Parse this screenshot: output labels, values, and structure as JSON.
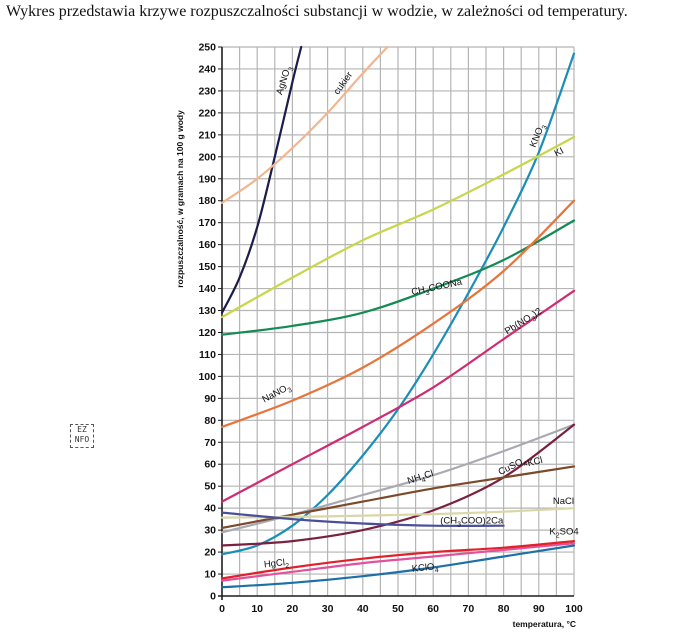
{
  "heading": "Wykres przedstawia krzywe rozpuszczalności substancji w wodzie, w zależności od temperatury.",
  "watermark_text": "EZNFO",
  "chart_data": {
    "type": "line",
    "xlabel": "temperatura, °C",
    "ylabel": "rozpuszczalność, w gramach na 100 g wody",
    "xlim": [
      0,
      100
    ],
    "ylim": [
      0,
      250
    ],
    "xticks": [
      0,
      10,
      20,
      30,
      40,
      50,
      60,
      70,
      80,
      90,
      100
    ],
    "yticks": [
      0,
      10,
      20,
      30,
      40,
      50,
      60,
      70,
      80,
      90,
      100,
      110,
      120,
      130,
      140,
      150,
      160,
      170,
      180,
      190,
      200,
      210,
      220,
      230,
      240,
      250
    ],
    "grid": true,
    "series": [
      {
        "name": "AgNO3",
        "label_main": "AgNO",
        "label_sub": "3",
        "color": "#1c1c4a",
        "x": [
          0,
          5,
          10,
          15,
          20,
          22.5
        ],
        "y": [
          129,
          145,
          168,
          200,
          234,
          250
        ]
      },
      {
        "name": "cukier",
        "label_main": "cukier",
        "label_sub": "",
        "color": "#f2b58e",
        "x": [
          0,
          10,
          20,
          30,
          40,
          47
        ],
        "y": [
          179,
          190,
          204,
          220,
          238,
          250
        ]
      },
      {
        "name": "KNO3",
        "label_main": "KNO",
        "label_sub": "3",
        "color": "#1a8db8",
        "x": [
          0,
          10,
          20,
          30,
          40,
          50,
          60,
          70,
          80,
          90,
          100
        ],
        "y": [
          19,
          23,
          32,
          46,
          64,
          85,
          110,
          138,
          168,
          202,
          247
        ]
      },
      {
        "name": "KI",
        "label_main": "KI",
        "label_sub": "",
        "color": "#c8d64a",
        "x": [
          0,
          20,
          40,
          60,
          80,
          100
        ],
        "y": [
          127,
          145,
          162,
          176,
          192,
          209
        ]
      },
      {
        "name": "CH3COONa",
        "label_main": "CH",
        "label_sub": "3",
        "label_tail": "COONa",
        "color": "#148a55",
        "x": [
          0,
          20,
          40,
          60,
          80,
          100
        ],
        "y": [
          119,
          123,
          129,
          140,
          153,
          171
        ]
      },
      {
        "name": "NaNO3",
        "label_main": "NaNO",
        "label_sub": "3",
        "color": "#e8743a",
        "x": [
          0,
          20,
          40,
          60,
          80,
          100
        ],
        "y": [
          77,
          89,
          104,
          124,
          148,
          180
        ]
      },
      {
        "name": "Pb(NO3)2",
        "label_main": "Pb(NO",
        "label_sub": "3",
        "label_tail": ")2",
        "color": "#d02a72",
        "x": [
          0,
          20,
          40,
          60,
          80,
          100
        ],
        "y": [
          43,
          60,
          77,
          95,
          117,
          139
        ]
      },
      {
        "name": "NH4Cl",
        "label_main": "NH",
        "label_sub": "4",
        "label_tail": "Cl",
        "color": "#a9a9b3",
        "x": [
          0,
          20,
          40,
          60,
          80,
          100
        ],
        "y": [
          29,
          37,
          46,
          55,
          66,
          78
        ]
      },
      {
        "name": "CuSO4",
        "label_main": "CuSO",
        "label_sub": "4",
        "color": "#7a2040",
        "x": [
          0,
          20,
          40,
          60,
          80,
          100
        ],
        "y": [
          23,
          25,
          30,
          39,
          54,
          78
        ]
      },
      {
        "name": "KCl",
        "label_main": "KCl",
        "label_sub": "",
        "color": "#7a4a2a",
        "x": [
          0,
          20,
          40,
          60,
          80,
          100
        ],
        "y": [
          31,
          37,
          43,
          49,
          54,
          59
        ]
      },
      {
        "name": "NaCl",
        "label_main": "NaCl",
        "label_sub": "",
        "color": "#d9d6a8",
        "x": [
          0,
          20,
          40,
          60,
          80,
          100
        ],
        "y": [
          35.7,
          36,
          36.6,
          37.3,
          38.4,
          40
        ]
      },
      {
        "name": "(CH3COO)2Ca",
        "label_main": "(CH",
        "label_sub": "3",
        "label_tail": "COO)2Ca",
        "color": "#4a4f9a",
        "x": [
          0,
          20,
          40,
          60,
          80
        ],
        "y": [
          38,
          35,
          33,
          32,
          32
        ]
      },
      {
        "name": "K2SO4",
        "label_main": "K",
        "label_sub": "2",
        "label_tail": "SO4",
        "color": "#e0529a",
        "x": [
          0,
          20,
          40,
          60,
          80,
          100
        ],
        "y": [
          7,
          11,
          15,
          18,
          21,
          24
        ]
      },
      {
        "name": "HgCl2",
        "label_main": "HgCl",
        "label_sub": "2",
        "color": "#e0202a",
        "x": [
          0,
          20,
          40,
          60,
          80,
          100
        ],
        "y": [
          8,
          13,
          17,
          20,
          22,
          25
        ]
      },
      {
        "name": "KClO4",
        "label_main": "KClO",
        "label_sub": "4",
        "color": "#1d6fa8",
        "x": [
          0,
          20,
          40,
          60,
          80,
          100
        ],
        "y": [
          4,
          6,
          9,
          13,
          18,
          23
        ]
      }
    ]
  }
}
